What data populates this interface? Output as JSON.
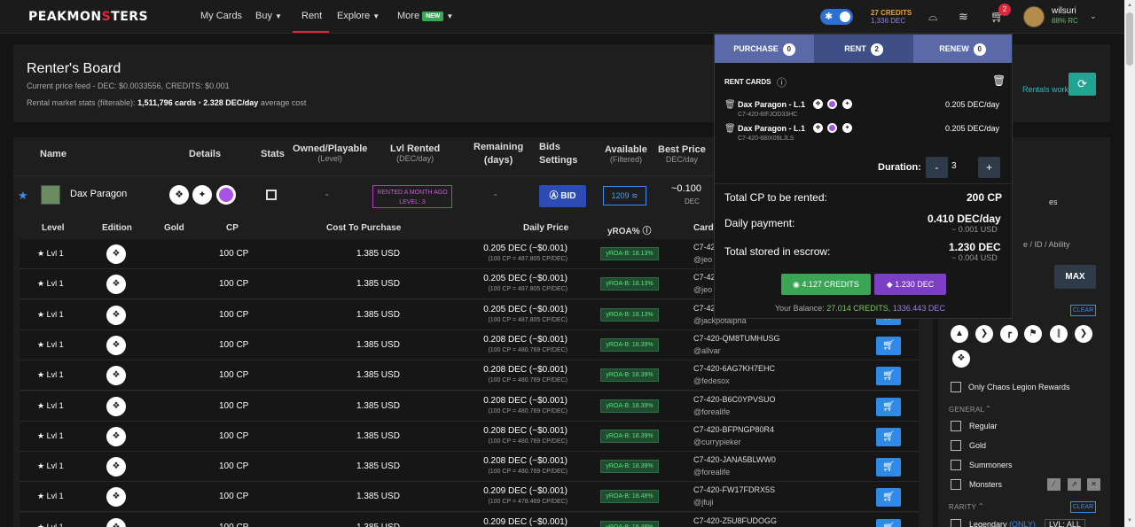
{
  "brand": {
    "logo_left": "PEAKMON",
    "logo_mid": "S",
    "logo_right": "TERS"
  },
  "nav": {
    "my_cards": "My Cards",
    "buy": "Buy",
    "rent": "Rent",
    "explore": "Explore",
    "more": "More",
    "new_badge": "NEW"
  },
  "topbar": {
    "credits": "27 CREDITS",
    "dec": "1,336 DEC",
    "cart_count": "2",
    "username": "wilsuri",
    "rc": "88% RC"
  },
  "board": {
    "title": "Renter's Board",
    "price_feed": "Current price feed - DEC: $0.0033556, CREDITS: $0.001",
    "stats_prefix": "Rental market stats (filterable):",
    "stats_cards": "1,511,796 cards",
    "stats_sep": " • ",
    "stats_dec": "2.328 DEC/day",
    "stats_suffix": "average cost",
    "how_works": "Rentals work"
  },
  "table_headers": {
    "name": "Name",
    "details": "Details",
    "stats": "Stats",
    "owned": "Owned/Playable",
    "owned_sub": "(Level)",
    "lvl_rented": "Lvl Rented",
    "lvl_rented_sub": "(DEC/day)",
    "remaining": "Remaining",
    "remaining_sub": "(days)",
    "bids": "Bids",
    "bids_sub": "Settings",
    "available": "Available",
    "available_sub": "(Filtered)",
    "best_price": "Best Price",
    "best_price_sub": "DEC/day"
  },
  "card": {
    "name": "Dax Paragon",
    "owned": "-",
    "rented_line1": "RENTED A MONTH AGO",
    "rented_line2": "LEVEL: 3",
    "remaining": "-",
    "bid_label": "BID",
    "available": "1209",
    "best_price": "~0.100",
    "best_price_unit": "DEC"
  },
  "sub_headers": {
    "level": "Level",
    "edition": "Edition",
    "gold": "Gold",
    "cp": "CP",
    "cost": "Cost To Purchase",
    "daily": "Daily Price",
    "yroa": "yROA%",
    "card": "Card"
  },
  "rows": [
    {
      "lvl": "Lvl 1",
      "cp": "100 CP",
      "usd": "1.385 USD",
      "daily": "0.205 DEC (~$0.001)",
      "daily_sub": "(100 CP = 487.805 CP/DEC)",
      "yroa": "yROA-B: 18.13%",
      "cid": "C7-42",
      "owner": "@jeo"
    },
    {
      "lvl": "Lvl 1",
      "cp": "100 CP",
      "usd": "1.385 USD",
      "daily": "0.205 DEC (~$0.001)",
      "daily_sub": "(100 CP = 487.805 CP/DEC)",
      "yroa": "yROA-B: 18.13%",
      "cid": "C7-42",
      "owner": "@jeo"
    },
    {
      "lvl": "Lvl 1",
      "cp": "100 CP",
      "usd": "1.385 USD",
      "daily": "0.205 DEC (~$0.001)",
      "daily_sub": "(100 CP = 487.805 CP/DEC)",
      "yroa": "yROA-B: 18.13%",
      "cid": "C7-42",
      "owner": "@jackpotalpha"
    },
    {
      "lvl": "Lvl 1",
      "cp": "100 CP",
      "usd": "1.385 USD",
      "daily": "0.208 DEC (~$0.001)",
      "daily_sub": "(100 CP = 480.769 CP/DEC)",
      "yroa": "yROA-B: 18.39%",
      "cid": "C7-420-QM8TUMHUSG",
      "owner": "@allvar"
    },
    {
      "lvl": "Lvl 1",
      "cp": "100 CP",
      "usd": "1.385 USD",
      "daily": "0.208 DEC (~$0.001)",
      "daily_sub": "(100 CP = 480.769 CP/DEC)",
      "yroa": "yROA-B: 18.39%",
      "cid": "C7-420-6AG7KH7EHC",
      "owner": "@fedesox"
    },
    {
      "lvl": "Lvl 1",
      "cp": "100 CP",
      "usd": "1.385 USD",
      "daily": "0.208 DEC (~$0.001)",
      "daily_sub": "(100 CP = 480.769 CP/DEC)",
      "yroa": "yROA-B: 18.39%",
      "cid": "C7-420-B6C0YPVSUO",
      "owner": "@forealife"
    },
    {
      "lvl": "Lvl 1",
      "cp": "100 CP",
      "usd": "1.385 USD",
      "daily": "0.208 DEC (~$0.001)",
      "daily_sub": "(100 CP = 480.769 CP/DEC)",
      "yroa": "yROA-B: 18.39%",
      "cid": "C7-420-BFPNGP80R4",
      "owner": "@currypieker"
    },
    {
      "lvl": "Lvl 1",
      "cp": "100 CP",
      "usd": "1.385 USD",
      "daily": "0.208 DEC (~$0.001)",
      "daily_sub": "(100 CP = 480.769 CP/DEC)",
      "yroa": "yROA-B: 18.39%",
      "cid": "C7-420-JANA5BLWW0",
      "owner": "@forealife"
    },
    {
      "lvl": "Lvl 1",
      "cp": "100 CP",
      "usd": "1.385 USD",
      "daily": "0.209 DEC (~$0.001)",
      "daily_sub": "(100 CP = 478.469 CP/DEC)",
      "yroa": "yROA-B: 18.48%",
      "cid": "C7-420-FW17FDRX5S",
      "owner": "@jfuji"
    },
    {
      "lvl": "Lvl 1",
      "cp": "100 CP",
      "usd": "1.385 USD",
      "daily": "0.209 DEC (~$0.001)",
      "daily_sub": "",
      "yroa": "yROA-B: 18.48%",
      "cid": "C7-420-Z5U8FUDOGG",
      "owner": ""
    }
  ],
  "filters": {
    "es": "es",
    "search_hint": "e / ID / Ability",
    "max": "MAX",
    "clear": "CLEAR",
    "only_chaos": "Only Chaos Legion Rewards",
    "general": "GENERAL",
    "regular": "Regular",
    "gold": "Gold",
    "summoners": "Summoners",
    "monsters": "Monsters",
    "rarity": "RARITY",
    "legendary": "Legendary",
    "only": "(ONLY)",
    "lvl_all": "LVL: ALL"
  },
  "cart_panel": {
    "tab_purchase": "PURCHASE",
    "tab_purchase_count": "0",
    "tab_rent": "RENT",
    "tab_rent_count": "2",
    "tab_renew": "RENEW",
    "tab_renew_count": "0",
    "rent_cards": "RENT CARDS",
    "items": [
      {
        "name": "Dax Paragon - L.1",
        "id": "C7-420-8IFJOD33HC",
        "price": "0.205 DEC/day"
      },
      {
        "name": "Dax Paragon - L.1",
        "id": "C7-420-68IX09LJLS",
        "price": "0.205 DEC/day"
      }
    ],
    "duration_label": "Duration:",
    "duration_value": "3",
    "total_cp_label": "Total CP to be rented:",
    "total_cp": "200 CP",
    "daily_label": "Daily payment:",
    "daily": "0.410 DEC/day",
    "daily_usd": "~ 0.001 USD",
    "escrow_label": "Total stored in escrow:",
    "escrow": "1.230 DEC",
    "escrow_usd": "~ 0.004 USD",
    "pay_credits": "4.127 CREDITS",
    "pay_dec": "1.230 DEC",
    "balance_label": "Your Balance:",
    "balance_credits": "27.014 CREDITS,",
    "balance_dec": "1336.443 DEC"
  },
  "colors": {
    "accent_red": "#e0263b",
    "accent_blue": "#2e8ae6",
    "green": "#3aa655",
    "purple": "#7c3fc4"
  }
}
